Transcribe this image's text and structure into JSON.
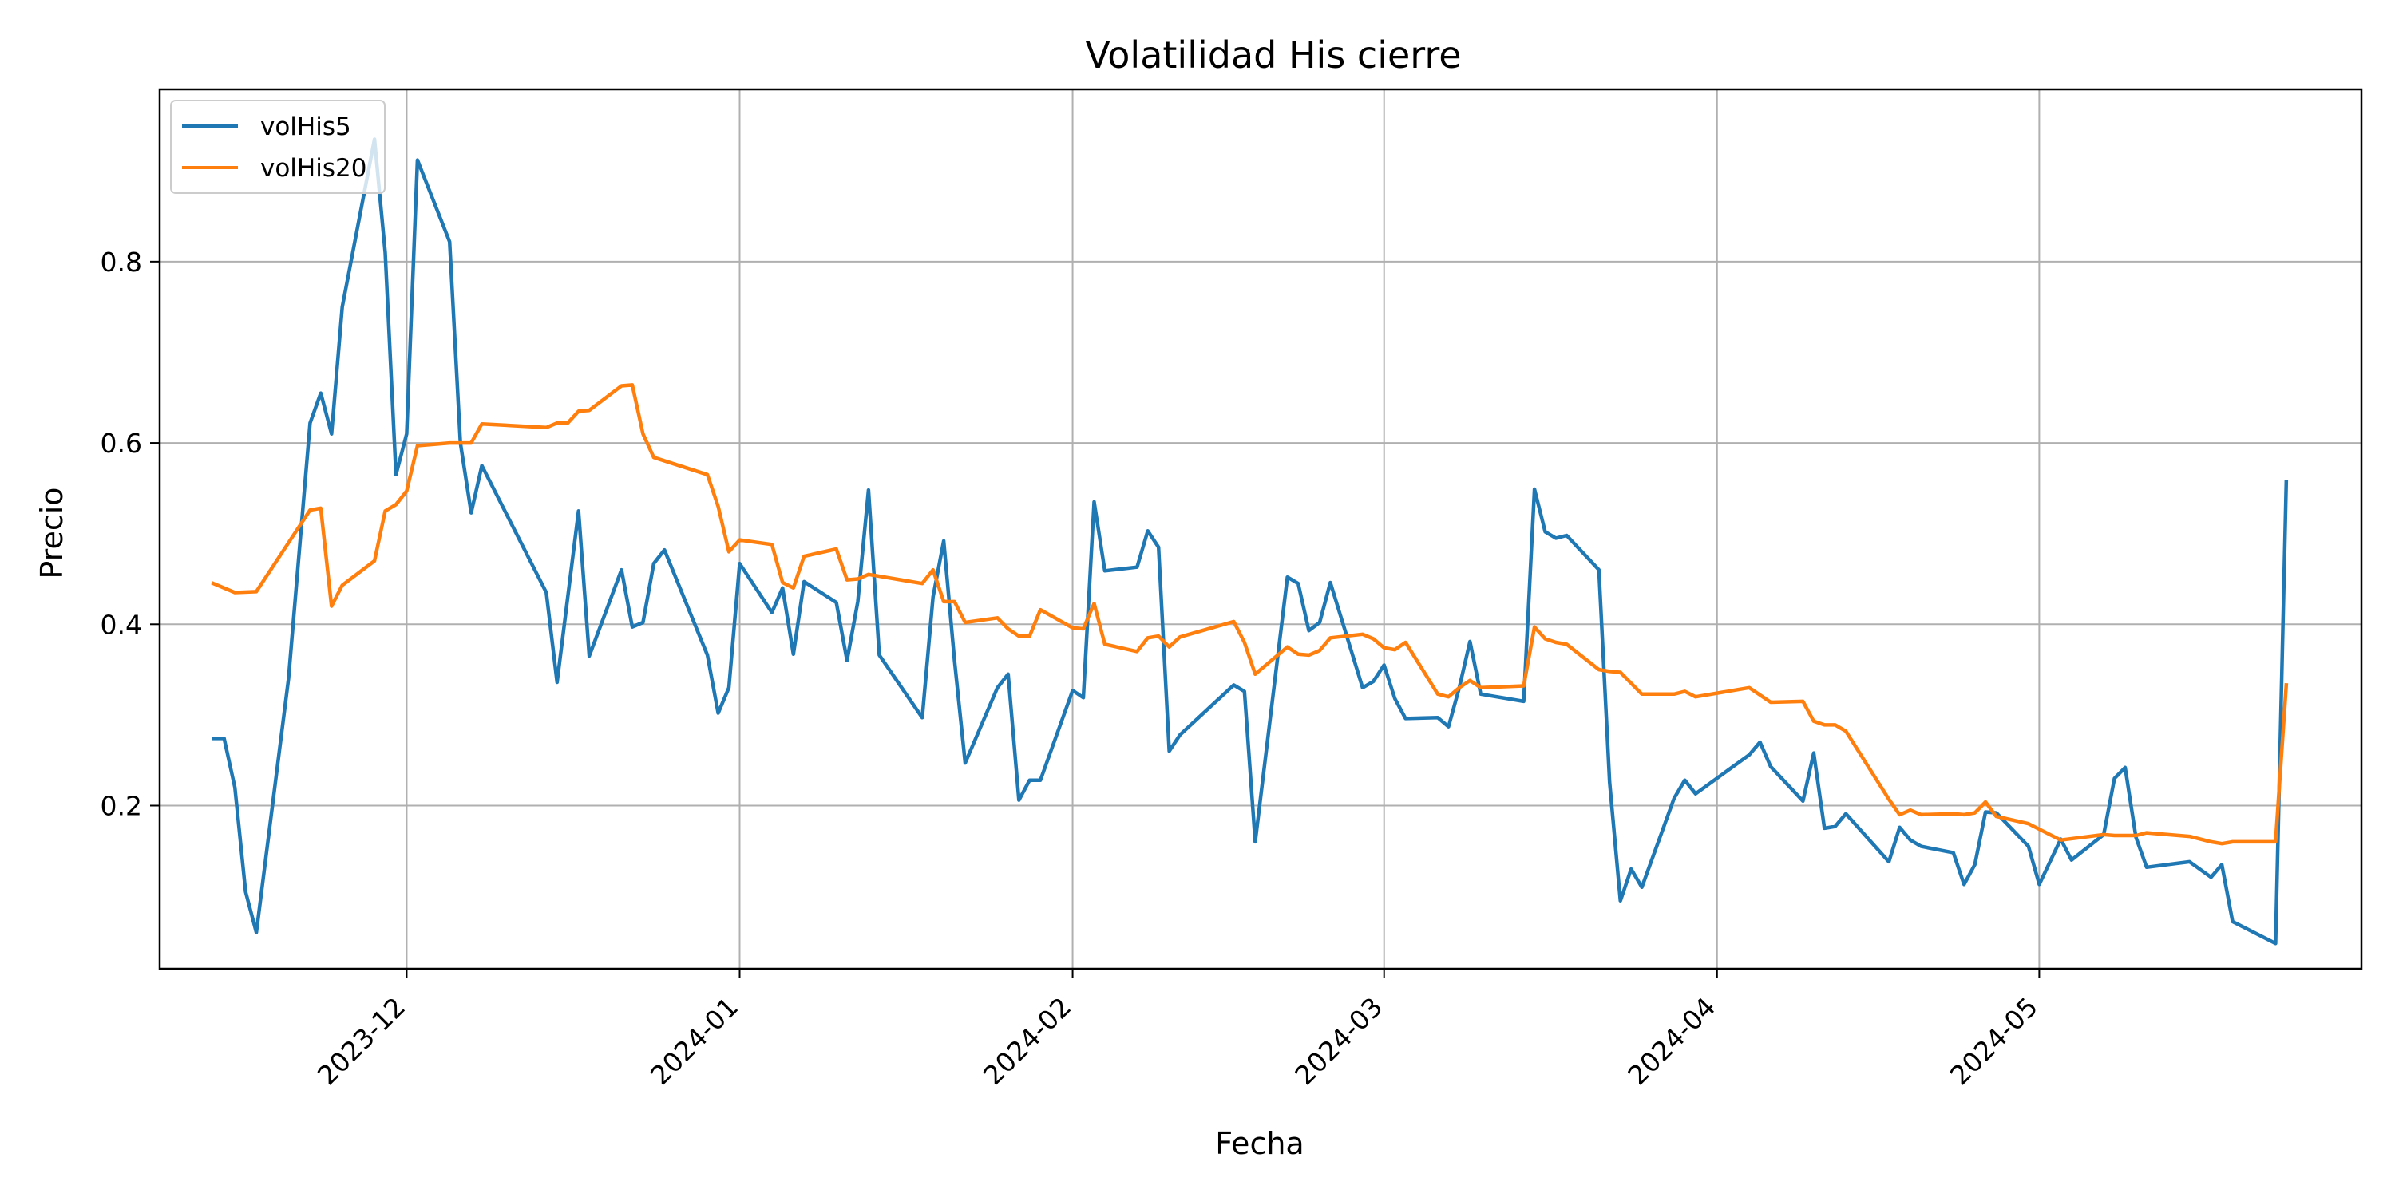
{
  "chart_data": {
    "type": "line",
    "title": "Volatilidad His cierre",
    "xlabel": "Fecha",
    "ylabel": "Precio",
    "x_type": "date",
    "xlim": [
      "2023-11-08",
      "2024-05-31"
    ],
    "ylim": [
      0.02,
      0.99
    ],
    "x_ticks": [
      "2023-12-01",
      "2024-01-01",
      "2024-02-01",
      "2024-03-01",
      "2024-04-01",
      "2024-05-01"
    ],
    "x_tick_labels": [
      "2023-12",
      "2024-01",
      "2024-02",
      "2024-03",
      "2024-04",
      "2024-05"
    ],
    "y_ticks": [
      0.2,
      0.4,
      0.6,
      0.8
    ],
    "y_tick_labels": [
      "0.2",
      "0.4",
      "0.6",
      "0.8"
    ],
    "grid": true,
    "legend_position": "top-left",
    "series": [
      {
        "name": "volHis5",
        "color": "#1f77b4",
        "points": [
          [
            "2023-11-13",
            0.274
          ],
          [
            "2023-11-14",
            0.274
          ],
          [
            "2023-11-15",
            0.22
          ],
          [
            "2023-11-16",
            0.105
          ],
          [
            "2023-11-17",
            0.06
          ],
          [
            "2023-11-20",
            0.34
          ],
          [
            "2023-11-22",
            0.622
          ],
          [
            "2023-11-23",
            0.655
          ],
          [
            "2023-11-24",
            0.61
          ],
          [
            "2023-11-25",
            0.75
          ],
          [
            "2023-11-28",
            0.935
          ],
          [
            "2023-11-29",
            0.81
          ],
          [
            "2023-11-30",
            0.565
          ],
          [
            "2023-12-01",
            0.61
          ],
          [
            "2023-12-02",
            0.912
          ],
          [
            "2023-12-05",
            0.822
          ],
          [
            "2023-12-06",
            0.6
          ],
          [
            "2023-12-07",
            0.523
          ],
          [
            "2023-12-08",
            0.575
          ],
          [
            "2023-12-14",
            0.435
          ],
          [
            "2023-12-15",
            0.336
          ],
          [
            "2023-12-17",
            0.525
          ],
          [
            "2023-12-18",
            0.365
          ],
          [
            "2023-12-21",
            0.46
          ],
          [
            "2023-12-22",
            0.397
          ],
          [
            "2023-12-23",
            0.402
          ],
          [
            "2023-12-24",
            0.467
          ],
          [
            "2023-12-25",
            0.482
          ],
          [
            "2023-12-29",
            0.366
          ],
          [
            "2023-12-30",
            0.302
          ],
          [
            "2023-12-31",
            0.33
          ],
          [
            "2024-01-01",
            0.467
          ],
          [
            "2024-01-04",
            0.413
          ],
          [
            "2024-01-05",
            0.44
          ],
          [
            "2024-01-06",
            0.367
          ],
          [
            "2024-01-07",
            0.447
          ],
          [
            "2024-01-10",
            0.424
          ],
          [
            "2024-01-11",
            0.36
          ],
          [
            "2024-01-12",
            0.425
          ],
          [
            "2024-01-13",
            0.548
          ],
          [
            "2024-01-14",
            0.366
          ],
          [
            "2024-01-18",
            0.297
          ],
          [
            "2024-01-19",
            0.43
          ],
          [
            "2024-01-20",
            0.492
          ],
          [
            "2024-01-21",
            0.36
          ],
          [
            "2024-01-22",
            0.247
          ],
          [
            "2024-01-25",
            0.33
          ],
          [
            "2024-01-26",
            0.345
          ],
          [
            "2024-01-27",
            0.206
          ],
          [
            "2024-01-28",
            0.228
          ],
          [
            "2024-01-29",
            0.228
          ],
          [
            "2024-02-01",
            0.327
          ],
          [
            "2024-02-02",
            0.319
          ],
          [
            "2024-02-03",
            0.535
          ],
          [
            "2024-02-04",
            0.459
          ],
          [
            "2024-02-07",
            0.463
          ],
          [
            "2024-02-08",
            0.503
          ],
          [
            "2024-02-09",
            0.485
          ],
          [
            "2024-02-10",
            0.26
          ],
          [
            "2024-02-11",
            0.278
          ],
          [
            "2024-02-16",
            0.333
          ],
          [
            "2024-02-17",
            0.326
          ],
          [
            "2024-02-18",
            0.16
          ],
          [
            "2024-02-21",
            0.452
          ],
          [
            "2024-02-22",
            0.445
          ],
          [
            "2024-02-23",
            0.393
          ],
          [
            "2024-02-24",
            0.402
          ],
          [
            "2024-02-25",
            0.446
          ],
          [
            "2024-02-28",
            0.33
          ],
          [
            "2024-02-29",
            0.337
          ],
          [
            "2024-03-01",
            0.355
          ],
          [
            "2024-03-02",
            0.318
          ],
          [
            "2024-03-03",
            0.296
          ],
          [
            "2024-03-06",
            0.297
          ],
          [
            "2024-03-07",
            0.287
          ],
          [
            "2024-03-08",
            0.33
          ],
          [
            "2024-03-09",
            0.381
          ],
          [
            "2024-03-10",
            0.323
          ],
          [
            "2024-03-14",
            0.315
          ],
          [
            "2024-03-15",
            0.549
          ],
          [
            "2024-03-16",
            0.502
          ],
          [
            "2024-03-17",
            0.495
          ],
          [
            "2024-03-18",
            0.498
          ],
          [
            "2024-03-21",
            0.46
          ],
          [
            "2024-03-22",
            0.226
          ],
          [
            "2024-03-23",
            0.095
          ],
          [
            "2024-03-24",
            0.13
          ],
          [
            "2024-03-25",
            0.11
          ],
          [
            "2024-03-28",
            0.208
          ],
          [
            "2024-03-29",
            0.228
          ],
          [
            "2024-03-30",
            0.213
          ],
          [
            "2024-04-04",
            0.256
          ],
          [
            "2024-04-05",
            0.27
          ],
          [
            "2024-04-06",
            0.243
          ],
          [
            "2024-04-09",
            0.205
          ],
          [
            "2024-04-10",
            0.258
          ],
          [
            "2024-04-11",
            0.175
          ],
          [
            "2024-04-12",
            0.177
          ],
          [
            "2024-04-13",
            0.191
          ],
          [
            "2024-04-17",
            0.138
          ],
          [
            "2024-04-18",
            0.176
          ],
          [
            "2024-04-19",
            0.162
          ],
          [
            "2024-04-20",
            0.155
          ],
          [
            "2024-04-23",
            0.148
          ],
          [
            "2024-04-24",
            0.113
          ],
          [
            "2024-04-25",
            0.135
          ],
          [
            "2024-04-26",
            0.193
          ],
          [
            "2024-04-27",
            0.192
          ],
          [
            "2024-04-30",
            0.155
          ],
          [
            "2024-05-01",
            0.113
          ],
          [
            "2024-05-03",
            0.163
          ],
          [
            "2024-05-04",
            0.14
          ],
          [
            "2024-05-07",
            0.168
          ],
          [
            "2024-05-08",
            0.23
          ],
          [
            "2024-05-09",
            0.242
          ],
          [
            "2024-05-10",
            0.165
          ],
          [
            "2024-05-11",
            0.132
          ],
          [
            "2024-05-15",
            0.138
          ],
          [
            "2024-05-17",
            0.121
          ],
          [
            "2024-05-18",
            0.135
          ],
          [
            "2024-05-19",
            0.072
          ],
          [
            "2024-05-23",
            0.048
          ],
          [
            "2024-05-24",
            0.557
          ]
        ]
      },
      {
        "name": "volHis20",
        "color": "#ff7f0e",
        "points": [
          [
            "2023-11-13",
            0.445
          ],
          [
            "2023-11-15",
            0.435
          ],
          [
            "2023-11-17",
            0.436
          ],
          [
            "2023-11-22",
            0.526
          ],
          [
            "2023-11-23",
            0.528
          ],
          [
            "2023-11-24",
            0.42
          ],
          [
            "2023-11-25",
            0.443
          ],
          [
            "2023-11-28",
            0.47
          ],
          [
            "2023-11-29",
            0.525
          ],
          [
            "2023-11-30",
            0.532
          ],
          [
            "2023-12-01",
            0.547
          ],
          [
            "2023-12-02",
            0.597
          ],
          [
            "2023-12-05",
            0.6
          ],
          [
            "2023-12-06",
            0.6
          ],
          [
            "2023-12-07",
            0.6
          ],
          [
            "2023-12-08",
            0.621
          ],
          [
            "2023-12-14",
            0.617
          ],
          [
            "2023-12-15",
            0.622
          ],
          [
            "2023-12-16",
            0.622
          ],
          [
            "2023-12-17",
            0.635
          ],
          [
            "2023-12-18",
            0.636
          ],
          [
            "2023-12-21",
            0.663
          ],
          [
            "2023-12-22",
            0.664
          ],
          [
            "2023-12-23",
            0.61
          ],
          [
            "2023-12-24",
            0.584
          ],
          [
            "2023-12-29",
            0.565
          ],
          [
            "2023-12-30",
            0.53
          ],
          [
            "2023-12-31",
            0.48
          ],
          [
            "2024-01-01",
            0.493
          ],
          [
            "2024-01-04",
            0.488
          ],
          [
            "2024-01-05",
            0.446
          ],
          [
            "2024-01-06",
            0.44
          ],
          [
            "2024-01-07",
            0.475
          ],
          [
            "2024-01-10",
            0.483
          ],
          [
            "2024-01-11",
            0.449
          ],
          [
            "2024-01-12",
            0.45
          ],
          [
            "2024-01-13",
            0.455
          ],
          [
            "2024-01-18",
            0.445
          ],
          [
            "2024-01-19",
            0.46
          ],
          [
            "2024-01-20",
            0.425
          ],
          [
            "2024-01-21",
            0.425
          ],
          [
            "2024-01-22",
            0.402
          ],
          [
            "2024-01-25",
            0.407
          ],
          [
            "2024-01-26",
            0.395
          ],
          [
            "2024-01-27",
            0.387
          ],
          [
            "2024-01-28",
            0.387
          ],
          [
            "2024-01-29",
            0.416
          ],
          [
            "2024-02-01",
            0.396
          ],
          [
            "2024-02-02",
            0.395
          ],
          [
            "2024-02-03",
            0.423
          ],
          [
            "2024-02-04",
            0.378
          ],
          [
            "2024-02-07",
            0.37
          ],
          [
            "2024-02-08",
            0.385
          ],
          [
            "2024-02-09",
            0.387
          ],
          [
            "2024-02-10",
            0.375
          ],
          [
            "2024-02-11",
            0.386
          ],
          [
            "2024-02-16",
            0.403
          ],
          [
            "2024-02-17",
            0.38
          ],
          [
            "2024-02-18",
            0.345
          ],
          [
            "2024-02-21",
            0.375
          ],
          [
            "2024-02-22",
            0.367
          ],
          [
            "2024-02-23",
            0.366
          ],
          [
            "2024-02-24",
            0.371
          ],
          [
            "2024-02-25",
            0.385
          ],
          [
            "2024-02-28",
            0.389
          ],
          [
            "2024-02-29",
            0.384
          ],
          [
            "2024-03-01",
            0.374
          ],
          [
            "2024-03-02",
            0.372
          ],
          [
            "2024-03-03",
            0.38
          ],
          [
            "2024-03-06",
            0.323
          ],
          [
            "2024-03-07",
            0.32
          ],
          [
            "2024-03-08",
            0.33
          ],
          [
            "2024-03-09",
            0.338
          ],
          [
            "2024-03-10",
            0.33
          ],
          [
            "2024-03-14",
            0.332
          ],
          [
            "2024-03-15",
            0.397
          ],
          [
            "2024-03-16",
            0.384
          ],
          [
            "2024-03-17",
            0.38
          ],
          [
            "2024-03-18",
            0.378
          ],
          [
            "2024-03-21",
            0.35
          ],
          [
            "2024-03-22",
            0.348
          ],
          [
            "2024-03-23",
            0.347
          ],
          [
            "2024-03-25",
            0.323
          ],
          [
            "2024-03-28",
            0.323
          ],
          [
            "2024-03-29",
            0.326
          ],
          [
            "2024-03-30",
            0.32
          ],
          [
            "2024-04-04",
            0.33
          ],
          [
            "2024-04-06",
            0.314
          ],
          [
            "2024-04-09",
            0.315
          ],
          [
            "2024-04-10",
            0.293
          ],
          [
            "2024-04-11",
            0.289
          ],
          [
            "2024-04-12",
            0.289
          ],
          [
            "2024-04-13",
            0.282
          ],
          [
            "2024-04-17",
            0.207
          ],
          [
            "2024-04-18",
            0.19
          ],
          [
            "2024-04-19",
            0.195
          ],
          [
            "2024-04-20",
            0.19
          ],
          [
            "2024-04-23",
            0.191
          ],
          [
            "2024-04-24",
            0.19
          ],
          [
            "2024-04-25",
            0.192
          ],
          [
            "2024-04-26",
            0.204
          ],
          [
            "2024-04-27",
            0.188
          ],
          [
            "2024-04-30",
            0.18
          ],
          [
            "2024-05-03",
            0.162
          ],
          [
            "2024-05-07",
            0.168
          ],
          [
            "2024-05-08",
            0.167
          ],
          [
            "2024-05-10",
            0.167
          ],
          [
            "2024-05-11",
            0.17
          ],
          [
            "2024-05-15",
            0.166
          ],
          [
            "2024-05-17",
            0.16
          ],
          [
            "2024-05-18",
            0.158
          ],
          [
            "2024-05-19",
            0.16
          ],
          [
            "2024-05-23",
            0.16
          ],
          [
            "2024-05-24",
            0.333
          ]
        ]
      }
    ]
  }
}
